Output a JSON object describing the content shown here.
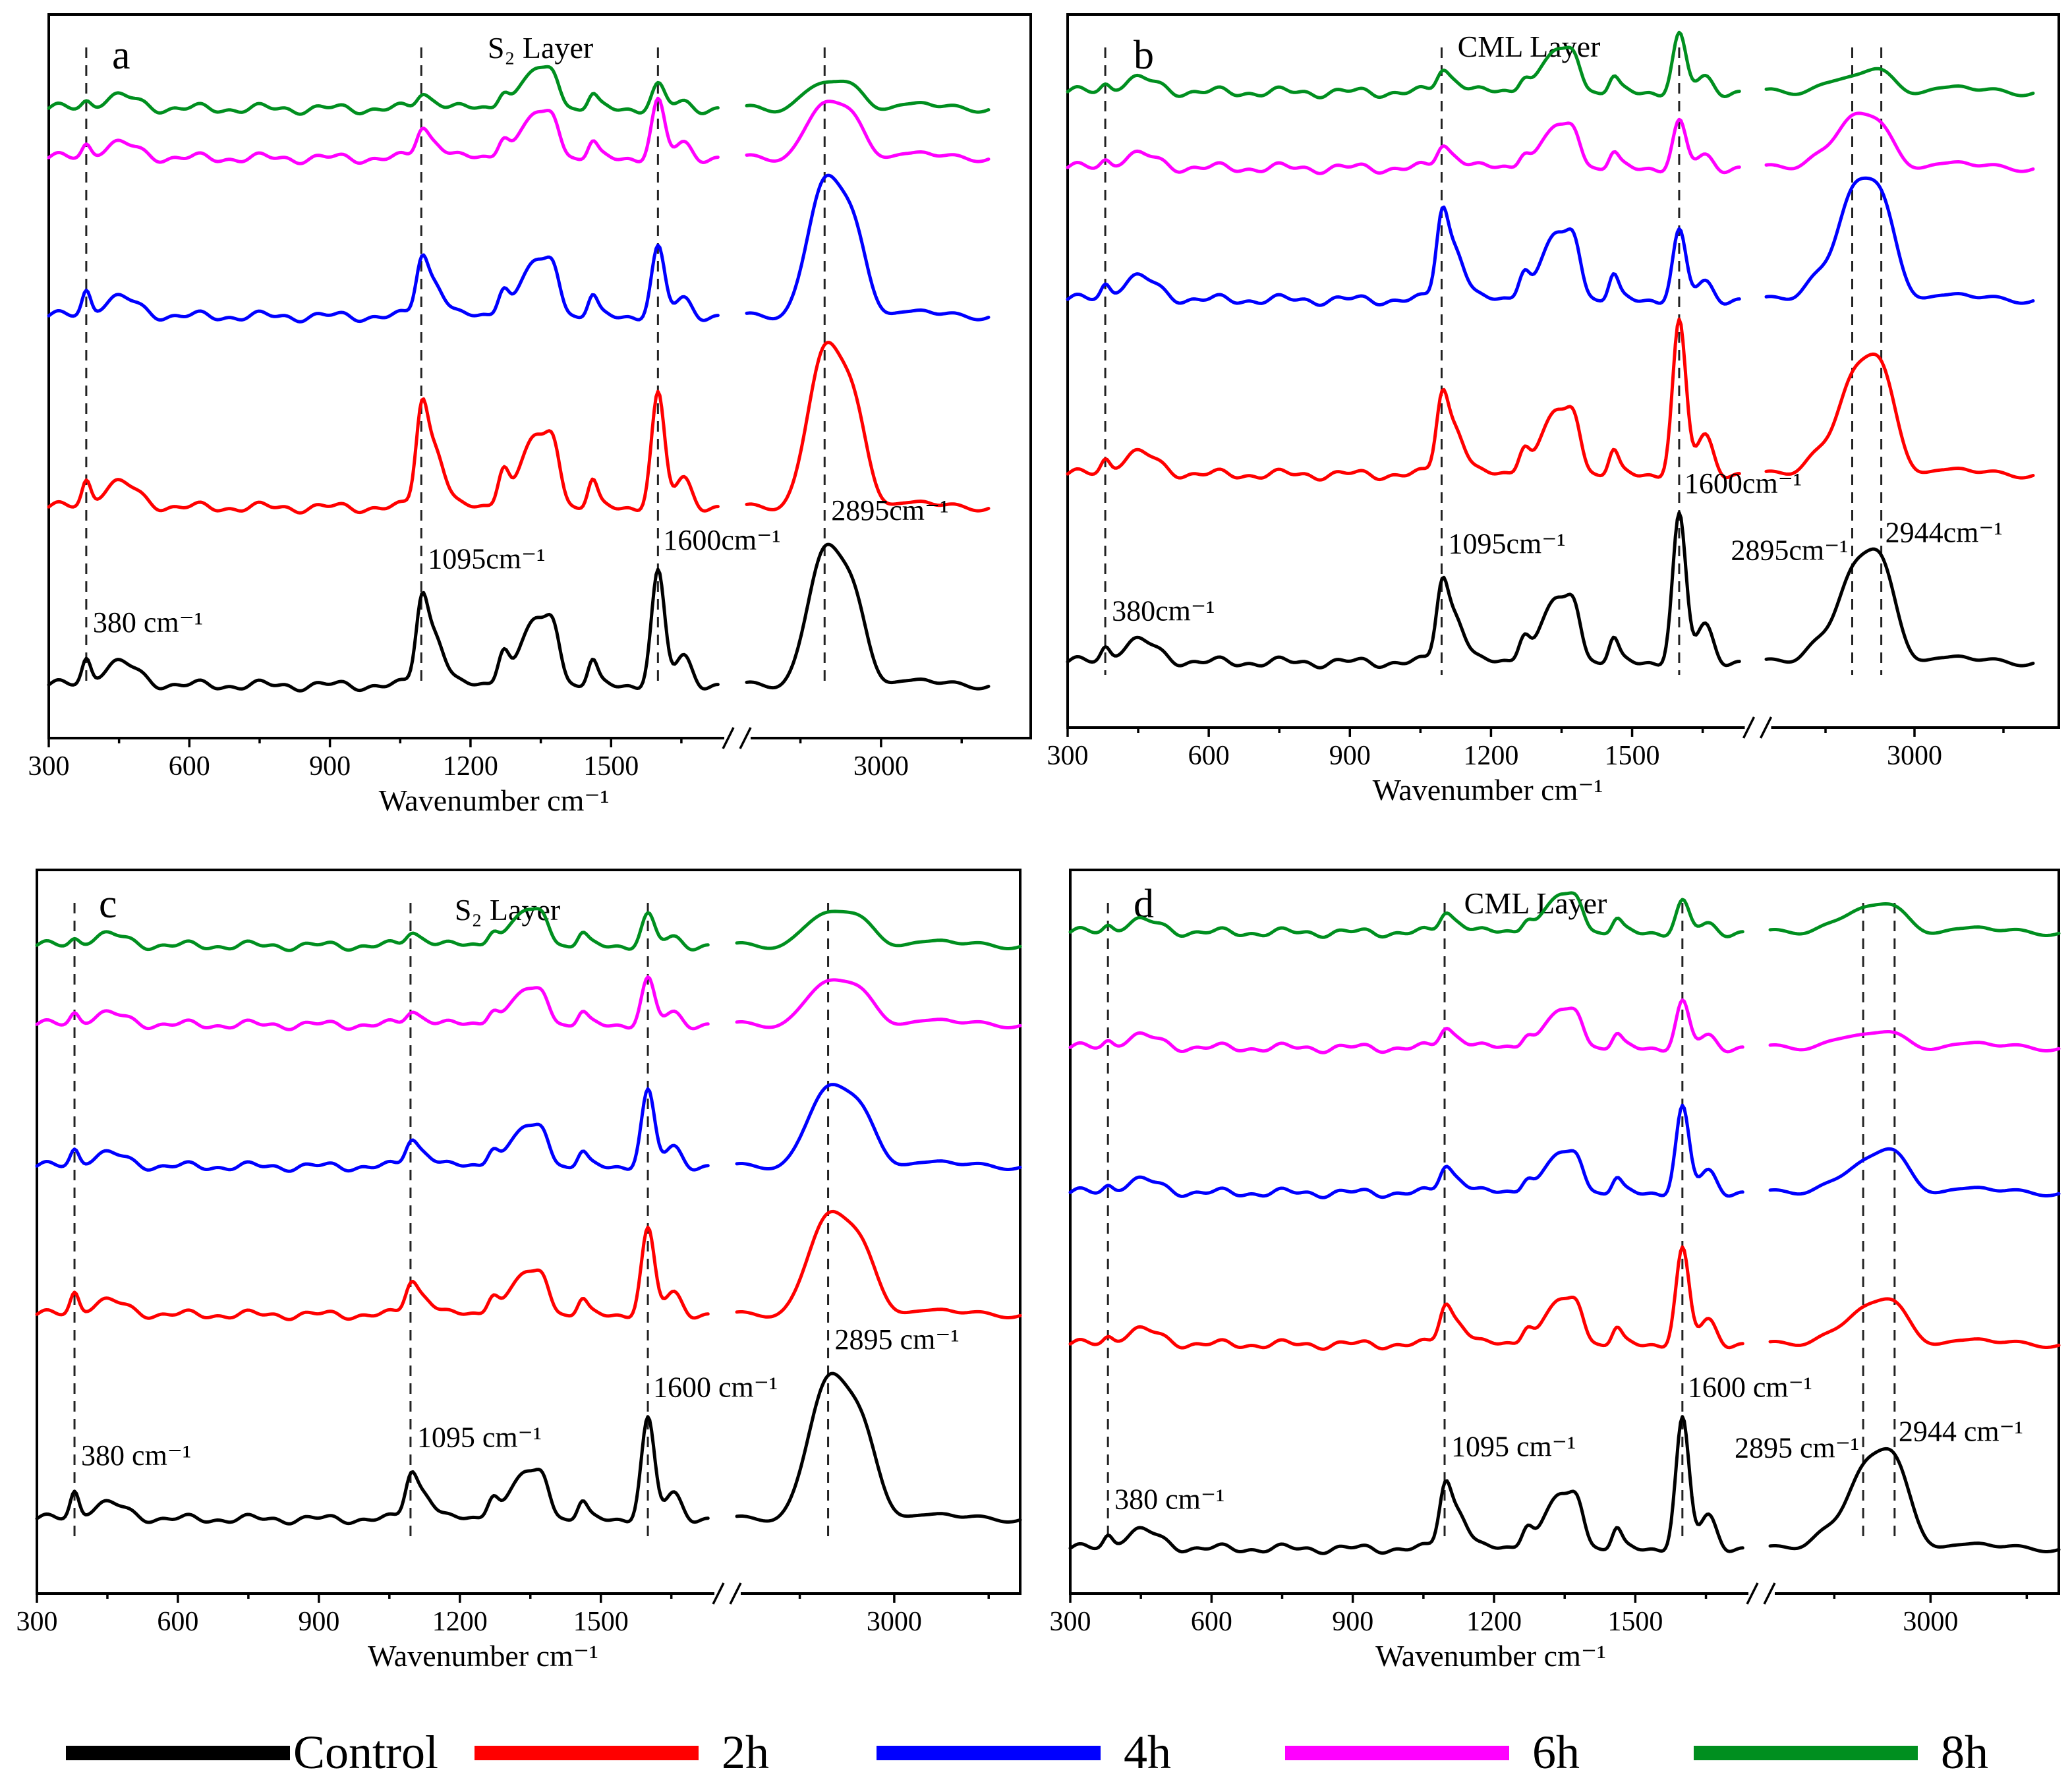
{
  "figure": {
    "legend": [
      {
        "label": "Control",
        "color": "#000000"
      },
      {
        "label": "2h",
        "color": "#ff0000"
      },
      {
        "label": "4h",
        "color": "#0000ff"
      },
      {
        "label": "6h",
        "color": "#ff00ff"
      },
      {
        "label": "8h",
        "color": "#008f1f"
      }
    ]
  },
  "chart_data": [
    {
      "type": "line",
      "panel": "a",
      "title": "S₂ Layer",
      "xlabel": "Wavenumber cm⁻¹",
      "ylabel": "",
      "x_tick_labels": [
        "300",
        "600",
        "900",
        "1200",
        "1500",
        "3000"
      ],
      "x_axis_break": "between 1750 and 2750 cm⁻¹",
      "x_ranges": [
        [
          300,
          1750
        ],
        [
          2750,
          3200
        ]
      ],
      "peaks": [
        380,
        1095,
        1600,
        2895
      ],
      "annotations": [
        "380 cm⁻¹",
        "1095cm⁻¹",
        "1600cm⁻¹",
        "2895cm⁻¹"
      ],
      "series": [
        {
          "name": "Control",
          "color": "#000000",
          "peak_heights": {
            "380": 0.2,
            "1095": 0.6,
            "1600": 1.0,
            "2895": 1.2
          }
        },
        {
          "name": "2h",
          "color": "#ff0000",
          "peak_heights": {
            "380": 0.2,
            "1095": 0.7,
            "1600": 1.0,
            "2895": 1.4
          }
        },
        {
          "name": "4h",
          "color": "#0000ff",
          "peak_heights": {
            "380": 0.2,
            "1095": 0.4,
            "1600": 0.6,
            "2895": 1.2
          }
        },
        {
          "name": "6h",
          "color": "#ff00ff",
          "peak_heights": {
            "380": 0.1,
            "1095": 0.2,
            "1600": 0.5,
            "2895": 0.5
          }
        },
        {
          "name": "8h",
          "color": "#008f1f",
          "peak_heights": {
            "380": 0.05,
            "1095": 0.1,
            "1600": 0.2,
            "2895": 0.25
          }
        }
      ]
    },
    {
      "type": "line",
      "panel": "b",
      "title": "CML Layer",
      "xlabel": "Wavenumber cm⁻¹",
      "ylabel": "",
      "x_tick_labels": [
        "300",
        "600",
        "900",
        "1200",
        "1500",
        "3000"
      ],
      "x_axis_break": "between 1750 and 2750 cm⁻¹",
      "x_ranges": [
        [
          300,
          1750
        ],
        [
          2750,
          3200
        ]
      ],
      "peaks": [
        380,
        1095,
        1600,
        2895,
        2944
      ],
      "annotations": [
        "380cm⁻¹",
        "1095cm⁻¹",
        "1600cm⁻¹",
        "2895cm⁻¹",
        "2944cm⁻¹"
      ],
      "series": [
        {
          "name": "Control",
          "color": "#000000",
          "peak_heights": {
            "380": 0.1,
            "1095": 0.55,
            "1600": 1.3,
            "2895": 0.75,
            "2944": 0.8
          }
        },
        {
          "name": "2h",
          "color": "#ff0000",
          "peak_heights": {
            "380": 0.1,
            "1095": 0.55,
            "1600": 1.35,
            "2895": 0.8,
            "2944": 0.85
          }
        },
        {
          "name": "4h",
          "color": "#0000ff",
          "peak_heights": {
            "380": 0.1,
            "1095": 0.6,
            "1600": 0.6,
            "2895": 0.9,
            "2944": 0.8
          }
        },
        {
          "name": "6h",
          "color": "#ff00ff",
          "peak_heights": {
            "380": 0.05,
            "1095": 0.15,
            "1600": 0.4,
            "2895": 0.45,
            "2944": 0.3
          }
        },
        {
          "name": "8h",
          "color": "#008f1f",
          "peak_heights": {
            "380": 0.05,
            "1095": 0.15,
            "1600": 0.5,
            "2895": 0.15,
            "2944": 0.15
          }
        }
      ]
    },
    {
      "type": "line",
      "panel": "c",
      "title": "S₂ Layer",
      "xlabel": "Wavenumber cm⁻¹",
      "ylabel": "",
      "x_tick_labels": [
        "300",
        "600",
        "900",
        "1200",
        "1500",
        "3000"
      ],
      "x_axis_break": "between 1750 and 2750 cm⁻¹",
      "x_ranges": [
        [
          300,
          1750
        ],
        [
          2750,
          3200
        ]
      ],
      "peaks": [
        380,
        1095,
        1600,
        2895
      ],
      "annotations": [
        "380 cm⁻¹",
        "1095 cm⁻¹",
        "1600 cm⁻¹",
        "2895 cm⁻¹"
      ],
      "series": [
        {
          "name": "Control",
          "color": "#000000",
          "peak_heights": {
            "380": 0.25,
            "1095": 0.35,
            "1600": 1.0,
            "2895": 1.4
          }
        },
        {
          "name": "2h",
          "color": "#ff0000",
          "peak_heights": {
            "380": 0.2,
            "1095": 0.25,
            "1600": 0.85,
            "2895": 1.0
          }
        },
        {
          "name": "4h",
          "color": "#0000ff",
          "peak_heights": {
            "380": 0.15,
            "1095": 0.2,
            "1600": 0.75,
            "2895": 0.8
          }
        },
        {
          "name": "6h",
          "color": "#ff00ff",
          "peak_heights": {
            "380": 0.1,
            "1095": 0.1,
            "1600": 0.45,
            "2895": 0.45
          }
        },
        {
          "name": "8h",
          "color": "#008f1f",
          "peak_heights": {
            "380": 0.05,
            "1095": 0.1,
            "1600": 0.3,
            "2895": 0.35
          }
        }
      ]
    },
    {
      "type": "line",
      "panel": "d",
      "title": "CML Layer",
      "xlabel": "Wavenumber cm⁻¹",
      "ylabel": "",
      "x_tick_labels": [
        "300",
        "600",
        "900",
        "1200",
        "1500",
        "3000"
      ],
      "x_axis_break": "between 1750 and 2750 cm⁻¹",
      "x_ranges": [
        [
          300,
          1750
        ],
        [
          2750,
          3200
        ]
      ],
      "peaks": [
        380,
        1095,
        1600,
        2895,
        2944
      ],
      "annotations": [
        "380 cm⁻¹",
        "1095 cm⁻¹",
        "1600 cm⁻¹",
        "2895 cm⁻¹",
        "2944 cm⁻¹"
      ],
      "series": [
        {
          "name": "Control",
          "color": "#000000",
          "peak_heights": {
            "380": 0.1,
            "1095": 0.5,
            "1600": 1.3,
            "2895": 0.75,
            "2944": 0.8
          }
        },
        {
          "name": "2h",
          "color": "#ff0000",
          "peak_heights": {
            "380": 0.05,
            "1095": 0.3,
            "1600": 0.95,
            "2895": 0.35,
            "2944": 0.35
          }
        },
        {
          "name": "4h",
          "color": "#0000ff",
          "peak_heights": {
            "380": 0.05,
            "1095": 0.2,
            "1600": 0.85,
            "2895": 0.3,
            "2944": 0.35
          }
        },
        {
          "name": "6h",
          "color": "#ff00ff",
          "peak_heights": {
            "380": 0.05,
            "1095": 0.15,
            "1600": 0.45,
            "2895": 0.15,
            "2944": 0.1
          }
        },
        {
          "name": "8h",
          "color": "#008f1f",
          "peak_heights": {
            "380": 0.05,
            "1095": 0.15,
            "1600": 0.3,
            "2895": 0.25,
            "2944": 0.2
          }
        }
      ]
    }
  ]
}
